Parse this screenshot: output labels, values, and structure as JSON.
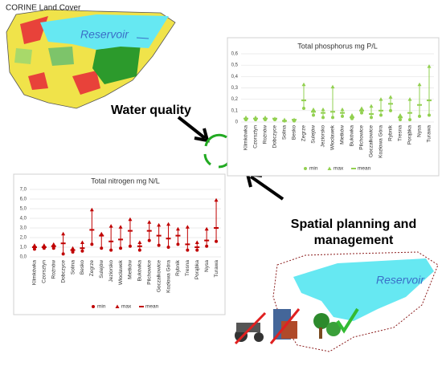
{
  "annotations": {
    "map_title": "CORINE Land Cover",
    "reservoir_top": "Reservoir",
    "water_quality": "Water quality",
    "spatial_planning": "Spatial planning and management",
    "reservoir_bottom": "Reservoir"
  },
  "chart_data": [
    {
      "type": "range",
      "title": "Total phosphorus mg P/L",
      "categories": [
        "Klimkówka",
        "Czorsztyn",
        "Rożnów",
        "Dobczyce",
        "Solina",
        "Besko",
        "Zegrze",
        "Sulejów",
        "Jeziorsko",
        "Włocławek",
        "Mietków",
        "Bukówka",
        "Pilchowice",
        "Goczałkowice",
        "Kozłowa Góra",
        "Rybnik",
        "Tresna",
        "Porąbka",
        "Nysa",
        "Turawa"
      ],
      "series": [
        {
          "name": "min",
          "color": "#92d050",
          "values": [
            0.02,
            0.02,
            0.02,
            0.02,
            0.01,
            0.01,
            0.12,
            0.06,
            0.04,
            0.04,
            0.05,
            0.03,
            0.08,
            0.04,
            0.06,
            0.1,
            0.02,
            0.02,
            0.05,
            0.06
          ]
        },
        {
          "name": "max",
          "color": "#92d050",
          "values": [
            0.04,
            0.04,
            0.04,
            0.03,
            0.02,
            0.02,
            0.33,
            0.11,
            0.11,
            0.31,
            0.11,
            0.06,
            0.12,
            0.14,
            0.2,
            0.22,
            0.06,
            0.2,
            0.33,
            0.49
          ]
        },
        {
          "name": "mean",
          "color": "#92d050",
          "values": [
            0.03,
            0.03,
            0.03,
            0.03,
            0.01,
            0.02,
            0.19,
            0.09,
            0.08,
            0.09,
            0.08,
            0.04,
            0.1,
            0.07,
            0.1,
            0.16,
            0.04,
            0.08,
            0.15,
            0.19
          ]
        }
      ],
      "ylim": [
        0,
        0.6
      ],
      "yticks": [
        0,
        {
          "value": 0.1,
          "label": "0,1"
        },
        {
          "value": 0.2,
          "label": "0,2"
        },
        {
          "value": 0.3,
          "label": "0,3"
        },
        {
          "value": 0.4,
          "label": "0,4"
        },
        {
          "value": 0.5,
          "label": "0,5"
        },
        {
          "value": 0.6,
          "label": "0,6"
        }
      ],
      "grid": true,
      "legend": "bottom"
    },
    {
      "type": "range",
      "title": "Total nitrogen mg N/L",
      "categories": [
        "Klimkówka",
        "Czorsztyn",
        "Rożnów",
        "Dobczyce",
        "Solina",
        "Besko",
        "Zegrze",
        "Sulejów",
        "Jeziorsko",
        "Włocławek",
        "Mietków",
        "Bukówka",
        "Pilchowice",
        "Goczałkowice",
        "Kozłowa Góra",
        "Rybnik",
        "Tresna",
        "Porąbka",
        "Nysa",
        "Turawa"
      ],
      "series": [
        {
          "name": "min",
          "color": "#c00000",
          "values": [
            0.8,
            0.9,
            0.9,
            0.3,
            0.5,
            0.6,
            1.3,
            0.9,
            0.7,
            0.9,
            1.1,
            0.7,
            1.7,
            1.2,
            1.0,
            1.3,
            0.7,
            0.7,
            1.1,
            1.6
          ]
        },
        {
          "name": "max",
          "color": "#c00000",
          "values": [
            1.2,
            1.2,
            1.3,
            2.4,
            0.9,
            1.5,
            4.9,
            2.4,
            3.2,
            3.1,
            3.9,
            1.5,
            3.6,
            3.3,
            3.4,
            2.9,
            3.1,
            1.5,
            2.9,
            5.9
          ]
        },
        {
          "name": "mean",
          "color": "#c00000",
          "values": [
            1.0,
            1.0,
            1.1,
            1.4,
            0.7,
            0.9,
            2.8,
            2.2,
            1.6,
            1.8,
            2.7,
            1.1,
            2.7,
            2.2,
            1.9,
            2.2,
            1.3,
            1.0,
            1.7,
            3.0
          ]
        }
      ],
      "ylim": [
        0,
        7
      ],
      "yticks": [
        {
          "value": 0,
          "label": "0,0"
        },
        {
          "value": 1,
          "label": "1,0"
        },
        {
          "value": 2,
          "label": "2,0"
        },
        {
          "value": 3,
          "label": "3,0"
        },
        {
          "value": 4,
          "label": "4,0"
        },
        {
          "value": 5,
          "label": "5,0"
        },
        {
          "value": 6,
          "label": "6,0"
        },
        {
          "value": 7,
          "label": "7,0"
        }
      ],
      "grid": true,
      "legend": "bottom"
    }
  ]
}
